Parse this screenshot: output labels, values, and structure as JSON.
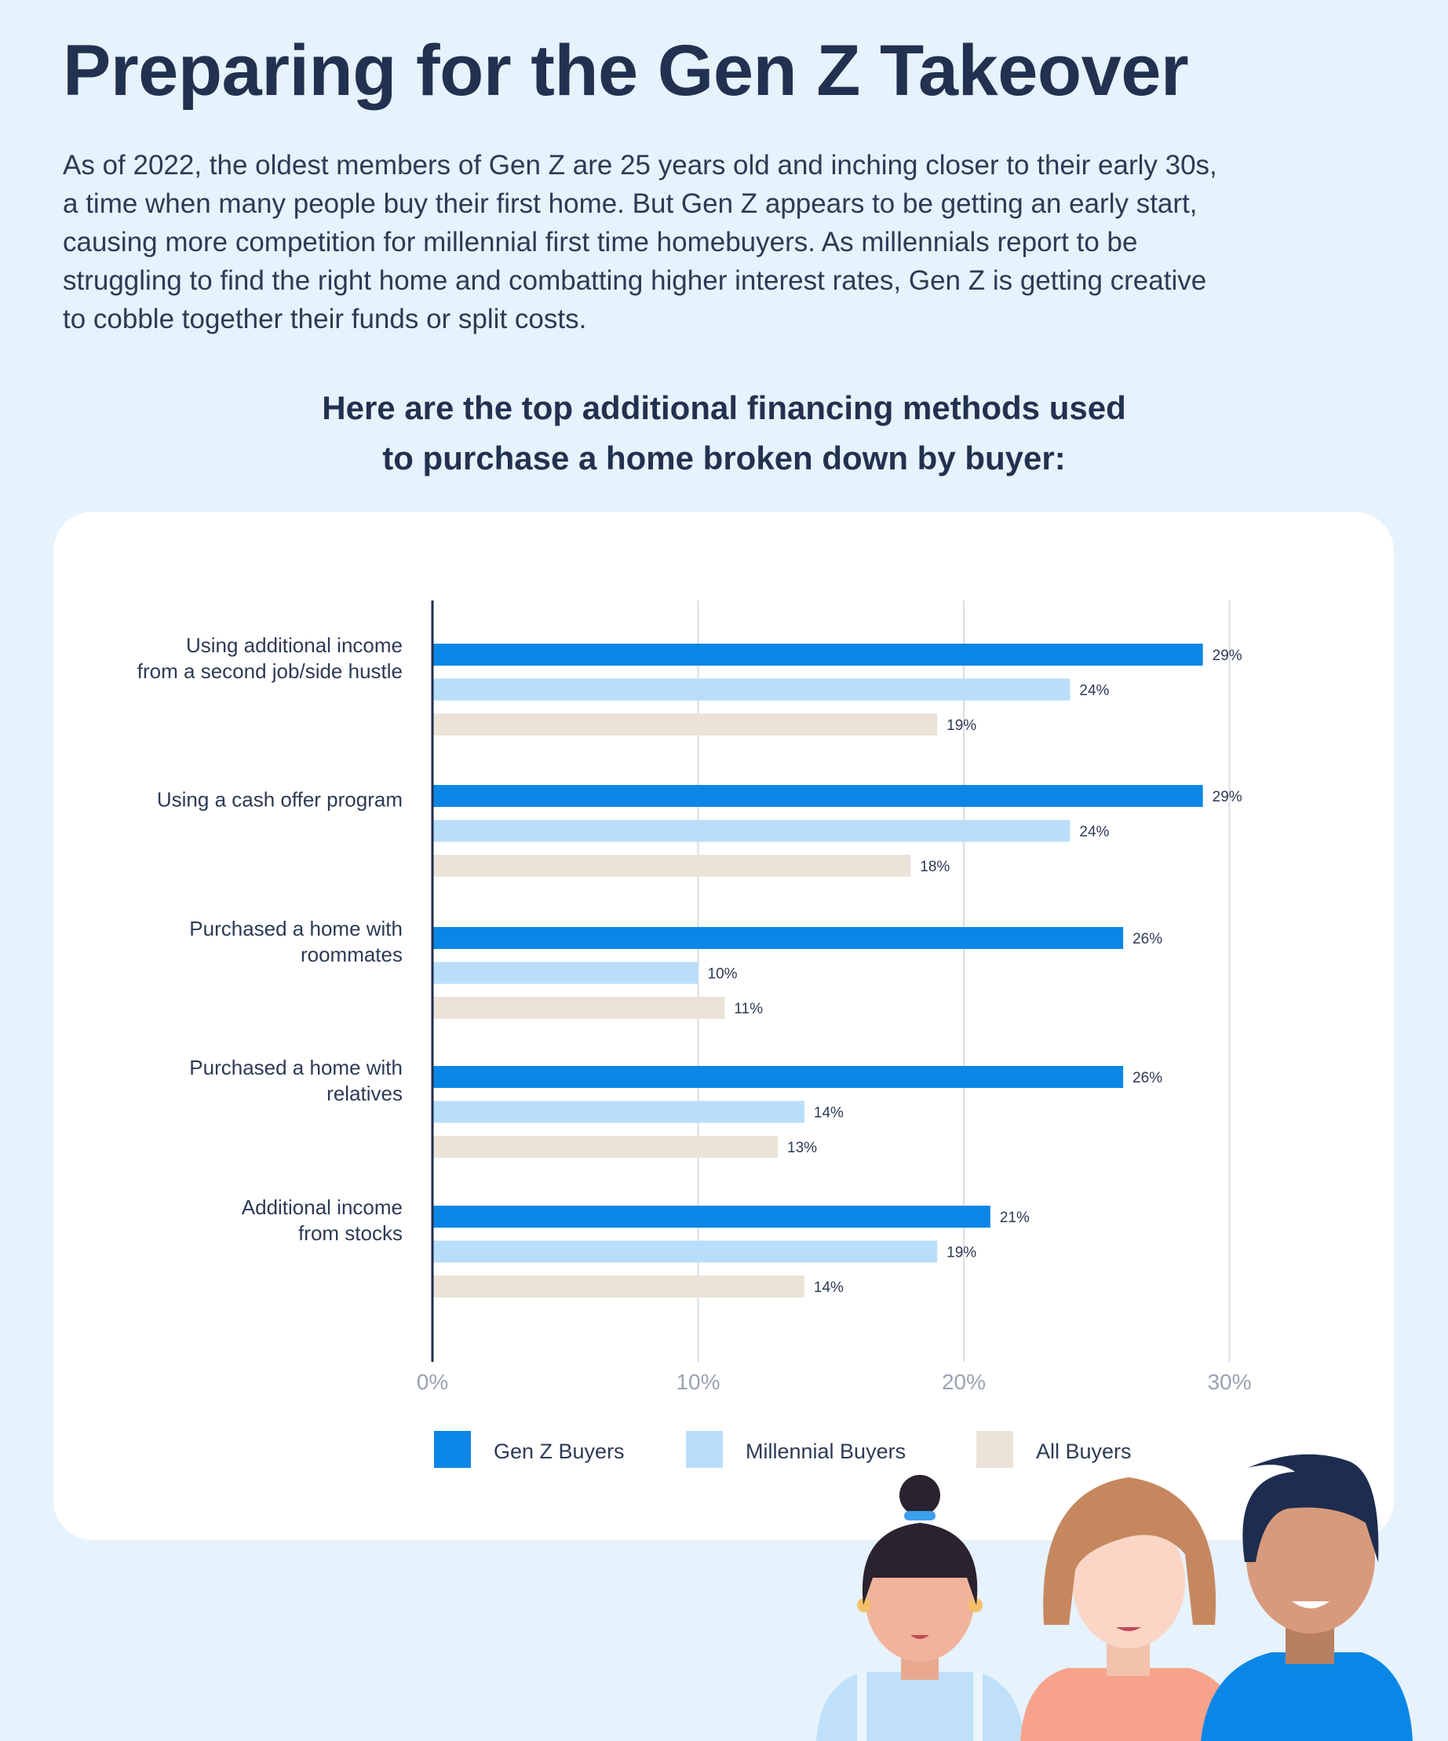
{
  "header": {
    "title": "Preparing for the Gen Z Takeover",
    "intro_lines": [
      "As of 2022, the oldest members of Gen Z are 25 years old and inching closer to their early 30s,",
      "a time when many people buy their first home. But Gen Z appears to be getting an early start,",
      "causing more competition for millennial first time homebuyers. As millennials report to be",
      "struggling to find the right home and combatting higher interest rates, Gen Z is getting creative",
      "to cobble together their funds or split costs."
    ],
    "subtitle_lines": [
      "Here are the top additional financing methods used",
      "to purchase a home broken down by buyer:"
    ]
  },
  "chart_data": {
    "type": "bar",
    "orientation": "horizontal",
    "categories": [
      [
        "Using additional income",
        "from a second job/side hustle"
      ],
      [
        "Using a cash offer program"
      ],
      [
        "Purchased a home with",
        "roommates"
      ],
      [
        "Purchased a home with",
        "relatives"
      ],
      [
        "Additional income",
        "from stocks"
      ]
    ],
    "series": [
      {
        "name": "Gen Z Buyers",
        "color": "#0a87e6",
        "values": [
          29,
          29,
          26,
          26,
          21
        ]
      },
      {
        "name": "Millennial Buyers",
        "color": "#b9defb",
        "values": [
          24,
          24,
          10,
          14,
          19
        ]
      },
      {
        "name": "All Buyers",
        "color": "#ebe3d8",
        "values": [
          19,
          18,
          11,
          13,
          14
        ]
      }
    ],
    "value_suffix": "%",
    "xlim": [
      0,
      30
    ],
    "ticks": [
      0,
      10,
      20,
      30
    ],
    "tick_labels": [
      "0%",
      "10%",
      "20%",
      "30%"
    ],
    "grid": true,
    "legend_position": "bottom"
  }
}
